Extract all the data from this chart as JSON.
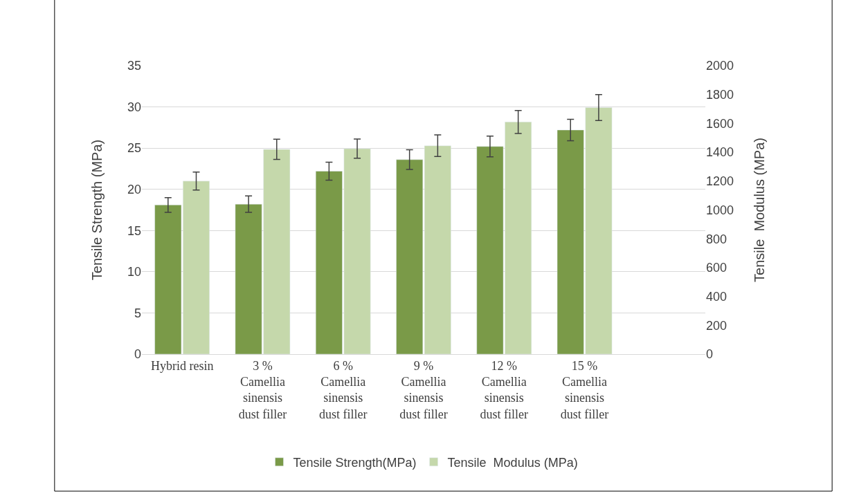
{
  "chart_data": {
    "type": "bar",
    "categories": [
      "Hybrid resin",
      "3 %\nCamellia\nsinensis\ndust filler",
      "6 %\nCamellia\nsinensis\ndust filler",
      "9 %\nCamellia\nsinensis\ndust filler",
      "12 %\nCamellia\nsinensis\ndust filler",
      "15 %\nCamellia\nsinensis\ndust filler",
      null
    ],
    "series": [
      {
        "name": "Tensile Strength(MPa)",
        "color": "#7a9a48",
        "values": [
          18.1,
          18.2,
          22.2,
          23.6,
          25.2,
          27.2,
          null
        ],
        "errors": [
          0.9,
          1.0,
          1.1,
          1.2,
          1.25,
          1.3,
          null
        ]
      },
      {
        "name": "Tensile  Modulus (MPa)",
        "color": "#c5d8ab",
        "axis": "y2",
        "values": [
          1200,
          1420,
          1425,
          1445,
          1610,
          1710,
          null
        ],
        "errors": [
          62,
          70,
          67,
          75,
          80,
          90,
          null
        ]
      }
    ],
    "ylabel": "Tensile Strength (MPa)",
    "y2label": "Tensile  Modulus (MPa)",
    "ylim": [
      0,
      35
    ],
    "yticks": [
      0,
      5,
      10,
      15,
      20,
      25,
      30,
      35
    ],
    "y2lim": [
      0,
      2000
    ],
    "y2ticks": [
      0,
      200,
      400,
      600,
      800,
      1000,
      1200,
      1400,
      1600,
      1800,
      2000
    ],
    "grid": "y",
    "legend": "bottom"
  }
}
